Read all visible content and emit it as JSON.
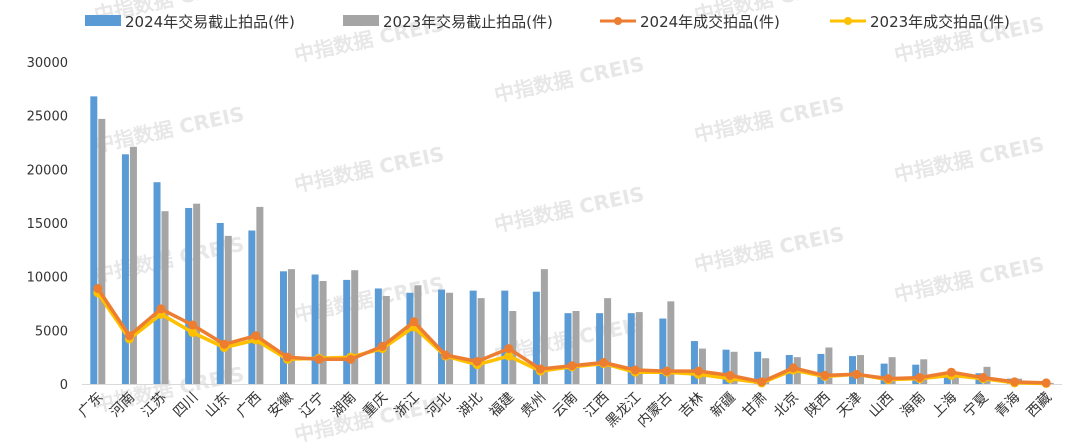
{
  "chart_data": {
    "type": "bar",
    "categories": [
      "广东",
      "河南",
      "江苏",
      "四川",
      "山东",
      "广西",
      "安徽",
      "辽宁",
      "湖南",
      "重庆",
      "浙江",
      "河北",
      "湖北",
      "福建",
      "贵州",
      "云南",
      "江西",
      "黑龙江",
      "内蒙古",
      "吉林",
      "新疆",
      "甘肃",
      "北京",
      "陕西",
      "天津",
      "山西",
      "海南",
      "上海",
      "宁夏",
      "青海",
      "西藏"
    ],
    "series": [
      {
        "name": "2024年交易截止拍品(件)",
        "type": "bar",
        "values": [
          26800,
          21400,
          18800,
          16400,
          15000,
          14300,
          10500,
          10200,
          9700,
          8900,
          8500,
          8800,
          8700,
          8700,
          8600,
          6600,
          6600,
          6600,
          6100,
          4000,
          3200,
          3000,
          2700,
          2800,
          2600,
          1900,
          1800,
          1100,
          1000,
          500,
          100
        ]
      },
      {
        "name": "2023年交易截止拍品(件)",
        "type": "bar",
        "values": [
          24700,
          22100,
          16100,
          16800,
          13800,
          16500,
          10700,
          9600,
          10600,
          8200,
          9200,
          8500,
          8000,
          6800,
          10700,
          6800,
          8000,
          6700,
          7700,
          3300,
          3000,
          2400,
          2500,
          3400,
          2700,
          2500,
          2300,
          900,
          1600,
          500,
          100
        ]
      },
      {
        "name": "2024年成交拍品(件)",
        "type": "line",
        "values": [
          8900,
          4500,
          7000,
          5500,
          3700,
          4500,
          2500,
          2300,
          2300,
          3500,
          5800,
          2700,
          2100,
          3300,
          1400,
          1700,
          2000,
          1300,
          1200,
          1200,
          800,
          200,
          1500,
          800,
          900,
          500,
          600,
          1100,
          600,
          200,
          100
        ]
      },
      {
        "name": "2023年成交拍品(件)",
        "type": "line",
        "values": [
          8500,
          4200,
          6500,
          4800,
          3400,
          4100,
          2300,
          2400,
          2500,
          3300,
          5300,
          2600,
          1800,
          2600,
          1200,
          1600,
          1900,
          1100,
          1100,
          900,
          500,
          100,
          1300,
          700,
          900,
          400,
          500,
          800,
          500,
          100,
          50
        ]
      }
    ],
    "ylim": [
      0,
      30000
    ],
    "yticks": [
      0,
      5000,
      10000,
      15000,
      20000,
      25000,
      30000
    ],
    "xlabel": "",
    "ylabel": "",
    "grid": false,
    "legend_position": "top",
    "colors": {
      "bar2024": "#5b9bd5",
      "bar2023": "#a5a5a5",
      "line2024": "#ed7d31",
      "line2023": "#ffc000"
    },
    "watermark": "中指数据 CREIS"
  }
}
